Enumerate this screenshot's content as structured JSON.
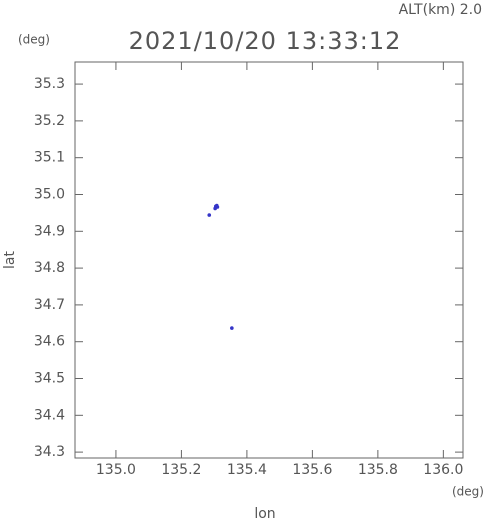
{
  "chart_data": {
    "type": "scatter",
    "title": "2021/10/20 13:33:12",
    "annotation": "ALT(km)  2.0",
    "y_unit": "(deg)",
    "x_unit": "(deg)",
    "x_label": "lon",
    "y_label": "lat",
    "x": [
      135.305,
      135.31,
      135.303,
      135.308,
      135.285,
      135.354
    ],
    "values": [
      34.968,
      34.966,
      34.962,
      34.97,
      34.944,
      34.637
    ],
    "color": "#3535c8",
    "xlim": [
      134.875,
      136.06
    ],
    "xticks": [
      {
        "value": 135.0,
        "label": "135.0"
      },
      135.2,
      135.4,
      135.6,
      135.8,
      {
        "value": 136.0,
        "label": "136.0"
      }
    ],
    "ylim": [
      34.284,
      35.36
    ],
    "yticks": [
      35.3,
      35.2,
      35.1,
      {
        "value": 35.0,
        "label": "35.0"
      },
      34.9,
      34.8,
      34.7,
      34.6,
      34.5,
      34.4,
      34.3
    ]
  }
}
